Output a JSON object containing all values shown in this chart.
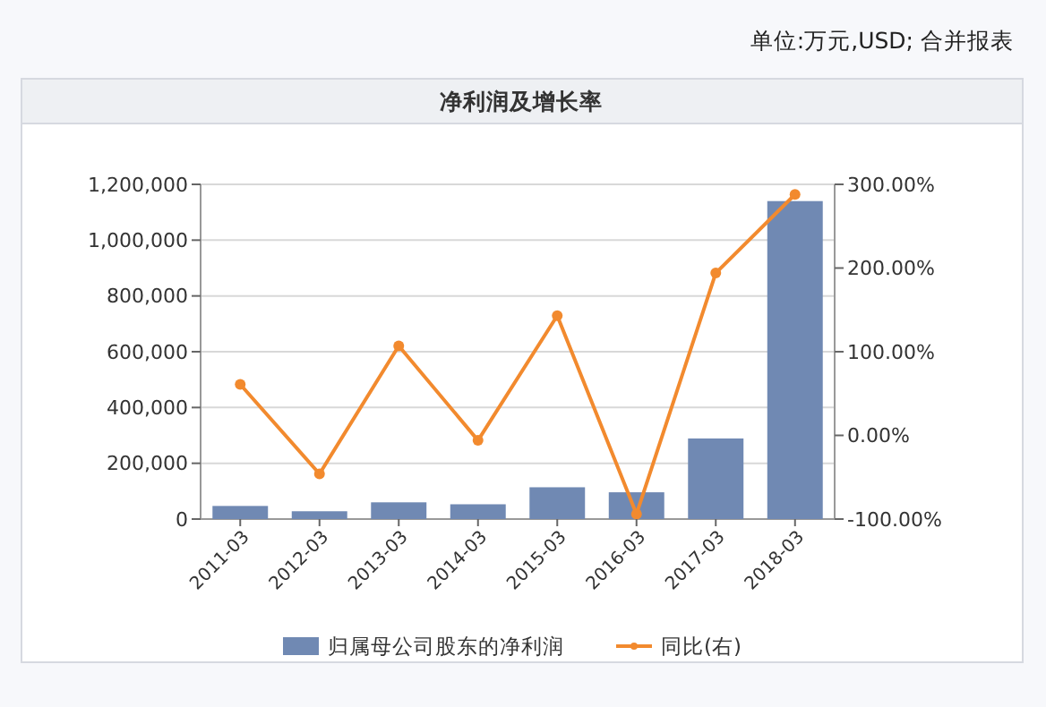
{
  "chart_data": {
    "type": "bar",
    "title": "净利润及增长率",
    "annotations": [
      "单位:万元,USD; 合并报表"
    ],
    "categories": [
      "2011-03",
      "2012-03",
      "2013-03",
      "2014-03",
      "2015-03",
      "2016-03",
      "2017-03",
      "2018-03"
    ],
    "series": [
      {
        "name": "归属母公司股东的净利润",
        "color": "#7089b3",
        "values": [
          47000,
          28000,
          60000,
          53000,
          114000,
          96000,
          289000,
          1140000
        ]
      },
      {
        "name": "同比(右)",
        "type": "line",
        "axis": "y2",
        "color": "#f28a2e",
        "marker": "circle",
        "values": [
          61,
          -46,
          107,
          -6,
          143,
          -94,
          194,
          288
        ]
      }
    ],
    "ylim": [
      0,
      1200000
    ],
    "yticks": [
      {
        "value": 0,
        "label": "0"
      },
      {
        "value": 200000,
        "label": "200,000"
      },
      {
        "value": 400000,
        "label": "400,000"
      },
      {
        "value": 600000,
        "label": "600,000"
      },
      {
        "value": 800000,
        "label": "800,000"
      },
      {
        "value": 1000000,
        "label": "1,000,000"
      },
      {
        "value": 1200000,
        "label": "1,200,000"
      }
    ],
    "y2lim": [
      -100,
      300
    ],
    "y2ticks": [
      {
        "value": -100,
        "label": "-100.00%"
      },
      {
        "value": 0,
        "label": "0.00%"
      },
      {
        "value": 100,
        "label": "100.00%"
      },
      {
        "value": 200,
        "label": "200.00%"
      },
      {
        "value": 300,
        "label": "300.00%"
      }
    ],
    "grid": "y",
    "legend": "bottom"
  }
}
